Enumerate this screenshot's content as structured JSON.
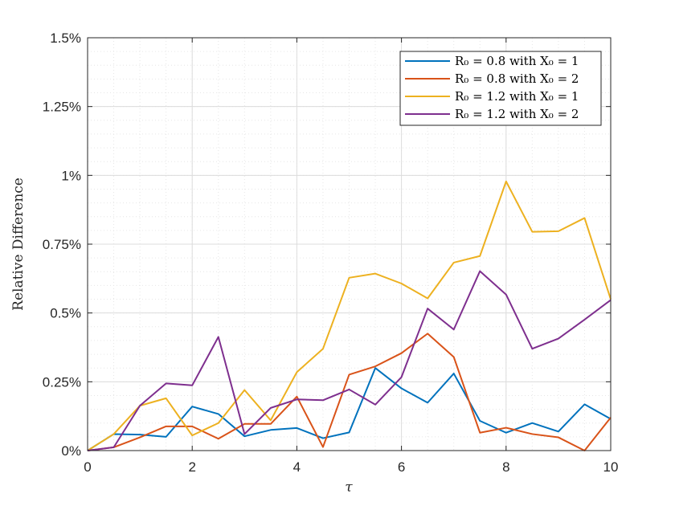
{
  "chart_data": {
    "type": "line",
    "xlabel": "τ",
    "ylabel": "Relative Difference",
    "xlim": [
      0,
      10
    ],
    "ylim": [
      0,
      1.5
    ],
    "x_ticks": [
      0,
      2,
      4,
      6,
      8,
      10
    ],
    "x_tick_labels": [
      "0",
      "2",
      "4",
      "6",
      "8",
      "10"
    ],
    "y_ticks": [
      0,
      0.25,
      0.5,
      0.75,
      1,
      1.25,
      1.5
    ],
    "y_tick_labels": [
      "0%",
      "0.25%",
      "0.5%",
      "0.75%",
      "1%",
      "1.25%",
      "1.5%"
    ],
    "grid": true,
    "minor_grid": true,
    "legend_position": "top-right",
    "x": [
      0,
      0.5,
      1,
      1.5,
      2,
      2.5,
      3,
      3.5,
      4,
      4.5,
      5,
      5.5,
      6,
      6.5,
      7,
      7.5,
      8,
      8.5,
      9,
      9.5,
      10
    ],
    "series": [
      {
        "name": "R₀ = 0.8 with X₀ = 1",
        "color": "#0072BD",
        "values": [
          0,
          0.06,
          0.058,
          0.05,
          0.16,
          0.133,
          0.052,
          0.075,
          0.082,
          0.045,
          0.066,
          0.3,
          0.226,
          0.174,
          0.28,
          0.108,
          0.065,
          0.1,
          0.069,
          0.168,
          0.115
        ]
      },
      {
        "name": "R₀ = 0.8 with X₀ = 2",
        "color": "#D95319",
        "values": [
          0,
          0.012,
          0.048,
          0.088,
          0.088,
          0.043,
          0.097,
          0.097,
          0.196,
          0.013,
          0.276,
          0.306,
          0.354,
          0.425,
          0.34,
          0.065,
          0.083,
          0.06,
          0.048,
          0.0,
          0.12
        ]
      },
      {
        "name": "R₀ = 1.2 with X₀ = 1",
        "color": "#EDB120",
        "values": [
          0,
          0.06,
          0.163,
          0.19,
          0.055,
          0.1,
          0.22,
          0.11,
          0.285,
          0.37,
          0.628,
          0.643,
          0.607,
          0.553,
          0.683,
          0.707,
          0.978,
          0.795,
          0.797,
          0.845,
          0.55
        ]
      },
      {
        "name": "R₀ = 1.2 with X₀ = 2",
        "color": "#7E2F8E",
        "values": [
          0,
          0.012,
          0.163,
          0.244,
          0.237,
          0.413,
          0.06,
          0.155,
          0.186,
          0.183,
          0.222,
          0.167,
          0.267,
          0.516,
          0.44,
          0.652,
          0.567,
          0.37,
          0.407,
          0.476,
          0.547
        ]
      }
    ]
  }
}
